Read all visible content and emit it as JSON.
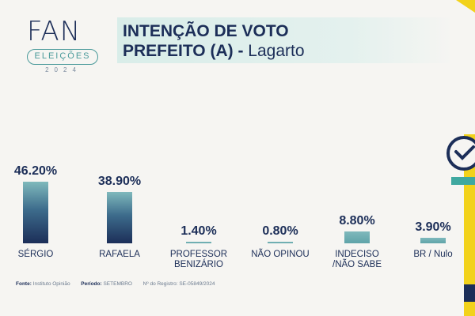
{
  "logo": {
    "brand": "FAN",
    "pill": "ELEIÇÕES",
    "year": "2024"
  },
  "header": {
    "title": "INTENÇÃO DE VOTO",
    "subtitle_bold": "PREFEITO (A) -",
    "subtitle_place": "Lagarto"
  },
  "chart_data": {
    "type": "bar",
    "title": "INTENÇÃO DE VOTO",
    "subtitle": "PREFEITO (A) - Lagarto",
    "categories": [
      "SÉRGIO",
      "RAFAELA",
      "PROFESSOR BENIZÁRIO",
      "NÃO OPINOU",
      "INDECISO /NÃO SABE",
      "BR / Nulo"
    ],
    "category_lines": [
      [
        "SÉRGIO"
      ],
      [
        "RAFAELA"
      ],
      [
        "PROFESSOR",
        "BENIZÁRIO"
      ],
      [
        "NÃO OPINOU"
      ],
      [
        "INDECISO",
        "/NÃO SABE"
      ],
      [
        "BR / Nulo"
      ]
    ],
    "values": [
      46.2,
      38.9,
      1.4,
      0.8,
      8.8,
      3.9
    ],
    "value_labels": [
      "46.20%",
      "38.90%",
      "1.40%",
      "0.80%",
      "8.80%",
      "3.90%"
    ],
    "ylim": [
      0,
      50
    ],
    "grid": false,
    "colors": [
      "gradient",
      "gradient",
      "teal",
      "teal",
      "teal",
      "teal"
    ]
  },
  "colors": {
    "navy": "#1c2e58",
    "teal": "#5fa9ad",
    "yellow": "#f2d21b"
  },
  "footer": {
    "source_label": "Fonte:",
    "source_value": "Instituto Opinião",
    "period_label": "Período:",
    "period_value": "SETEMBRO",
    "registry_label": "Nº do Registro:",
    "registry_value": "SE-05849/2024"
  }
}
